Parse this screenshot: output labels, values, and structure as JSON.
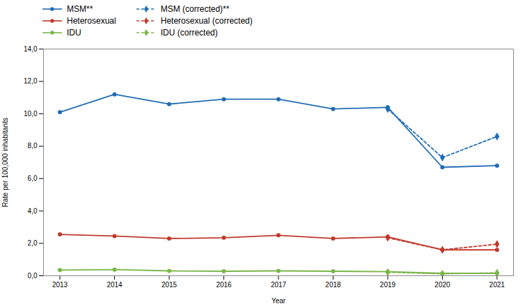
{
  "chart_data": {
    "type": "line",
    "x": [
      2013,
      2014,
      2015,
      2016,
      2017,
      2018,
      2019,
      2020,
      2021
    ],
    "series": [
      {
        "name": "MSM**",
        "color": "#1f6cb5",
        "line_style": "solid",
        "marker": "circle",
        "values": [
          10.1,
          11.2,
          10.6,
          10.9,
          10.9,
          10.3,
          10.4,
          6.7,
          6.8
        ]
      },
      {
        "name": "MSM (corrected)**",
        "color": "#1f6cb5",
        "line_style": "dashed",
        "marker": "diamond",
        "values": [
          null,
          null,
          null,
          null,
          null,
          null,
          10.3,
          7.3,
          8.6
        ]
      },
      {
        "name": "Heterosexual",
        "color": "#c0392b",
        "line_style": "solid",
        "marker": "circle",
        "values": [
          2.55,
          2.45,
          2.3,
          2.35,
          2.5,
          2.3,
          2.4,
          1.6,
          1.6
        ]
      },
      {
        "name": "Heterosexual (corrected)",
        "color": "#c0392b",
        "line_style": "dashed",
        "marker": "diamond",
        "values": [
          null,
          null,
          null,
          null,
          null,
          null,
          2.35,
          1.6,
          1.95
        ]
      },
      {
        "name": "IDU",
        "color": "#7ab648",
        "line_style": "solid",
        "marker": "circle",
        "values": [
          0.35,
          0.38,
          0.3,
          0.28,
          0.3,
          0.28,
          0.25,
          0.15,
          0.15
        ]
      },
      {
        "name": "IDU (corrected)",
        "color": "#7ab648",
        "line_style": "dashed",
        "marker": "diamond",
        "values": [
          null,
          null,
          null,
          null,
          null,
          null,
          0.22,
          0.12,
          0.18
        ]
      }
    ],
    "xlabel": "Year",
    "ylabel": "Rate per 100,000 inhabitants",
    "xlim": [
      2012.7,
      2021.3
    ],
    "xticks": [
      2013,
      2014,
      2015,
      2016,
      2017,
      2018,
      2019,
      2020,
      2021
    ],
    "ylim": [
      0,
      14
    ],
    "yticks": [
      {
        "value": 0,
        "label": "0,0"
      },
      {
        "value": 2,
        "label": "2,0"
      },
      {
        "value": 4,
        "label": "4,0"
      },
      {
        "value": 6,
        "label": "6,0"
      },
      {
        "value": 8,
        "label": "8,0"
      },
      {
        "value": 10,
        "label": "10,0"
      },
      {
        "value": 12,
        "label": "12,0"
      },
      {
        "value": 14,
        "label": "14,0"
      }
    ],
    "grid": false,
    "legend": "top"
  }
}
